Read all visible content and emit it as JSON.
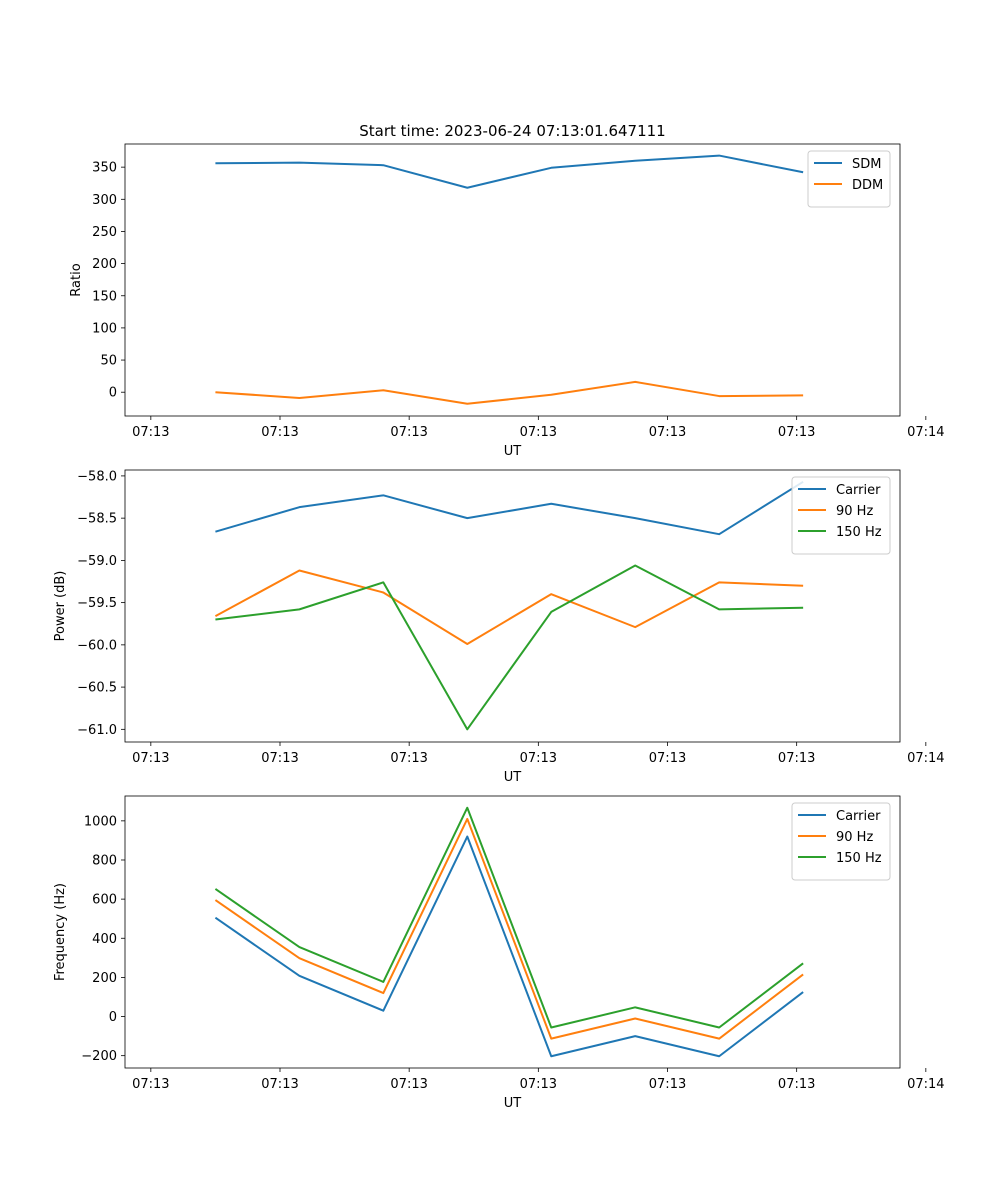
{
  "figure": {
    "title": "Start time: 2023-06-24 07:13:01.647111"
  },
  "chart_data": [
    {
      "type": "line",
      "title": "Start time: 2023-06-24 07:13:01.647111",
      "xlabel": "UT",
      "ylabel": "Ratio",
      "x_tick_labels": [
        "07:13",
        "07:13",
        "07:13",
        "07:13",
        "07:13",
        "07:13",
        "07:14"
      ],
      "xlim": [
        -0.2,
        5.8
      ],
      "ylim": [
        -37,
        386
      ],
      "y_ticks": [
        0,
        50,
        100,
        150,
        200,
        250,
        300,
        350
      ],
      "x": [
        0.5,
        1.15,
        1.8,
        2.45,
        3.1,
        3.75,
        4.4,
        5.05
      ],
      "legend_position": "top-right",
      "grid": false,
      "series": [
        {
          "name": "SDM",
          "color": "#1f77b4",
          "values": [
            356,
            357,
            353,
            318,
            349,
            360,
            368,
            342
          ]
        },
        {
          "name": "DDM",
          "color": "#ff7f0e",
          "values": [
            0,
            -9,
            3,
            -18,
            -4,
            16,
            -6,
            -5
          ]
        }
      ]
    },
    {
      "type": "line",
      "title": "",
      "xlabel": "UT",
      "ylabel": "Power (dB)",
      "x_tick_labels": [
        "07:13",
        "07:13",
        "07:13",
        "07:13",
        "07:13",
        "07:13",
        "07:14"
      ],
      "xlim": [
        -0.2,
        5.8
      ],
      "ylim": [
        -61.15,
        -57.93
      ],
      "y_ticks": [
        -61.0,
        -60.5,
        -60.0,
        -59.5,
        -59.0,
        -58.5,
        -58.0
      ],
      "x": [
        0.5,
        1.15,
        1.8,
        2.45,
        3.1,
        3.75,
        4.4,
        5.05
      ],
      "legend_position": "top-right",
      "grid": false,
      "series": [
        {
          "name": "Carrier",
          "color": "#1f77b4",
          "values": [
            -58.66,
            -58.37,
            -58.23,
            -58.5,
            -58.33,
            -58.5,
            -58.69,
            -58.07
          ]
        },
        {
          "name": "90 Hz",
          "color": "#ff7f0e",
          "values": [
            -59.66,
            -59.12,
            -59.38,
            -59.99,
            -59.4,
            -59.79,
            -59.26,
            -59.3
          ]
        },
        {
          "name": "150 Hz",
          "color": "#2ca02c",
          "values": [
            -59.7,
            -59.58,
            -59.26,
            -61.0,
            -59.61,
            -59.06,
            -59.58,
            -59.56
          ]
        }
      ]
    },
    {
      "type": "line",
      "title": "",
      "xlabel": "UT",
      "ylabel": "Frequency (Hz)",
      "x_tick_labels": [
        "07:13",
        "07:13",
        "07:13",
        "07:13",
        "07:13",
        "07:13",
        "07:14"
      ],
      "xlim": [
        -0.2,
        5.8
      ],
      "ylim": [
        -263,
        1127
      ],
      "y_ticks": [
        -200,
        0,
        200,
        400,
        600,
        800,
        1000
      ],
      "x": [
        0.5,
        1.15,
        1.8,
        2.45,
        3.1,
        3.75,
        4.4,
        5.05
      ],
      "legend_position": "top-right",
      "grid": false,
      "series": [
        {
          "name": "Carrier",
          "color": "#1f77b4",
          "values": [
            505,
            208,
            30,
            920,
            -203,
            -100,
            -203,
            125
          ]
        },
        {
          "name": "90 Hz",
          "color": "#ff7f0e",
          "values": [
            595,
            298,
            120,
            1010,
            -113,
            -10,
            -113,
            215
          ]
        },
        {
          "name": "150 Hz",
          "color": "#2ca02c",
          "values": [
            652,
            355,
            177,
            1067,
            -56,
            47,
            -56,
            272
          ]
        }
      ]
    }
  ]
}
